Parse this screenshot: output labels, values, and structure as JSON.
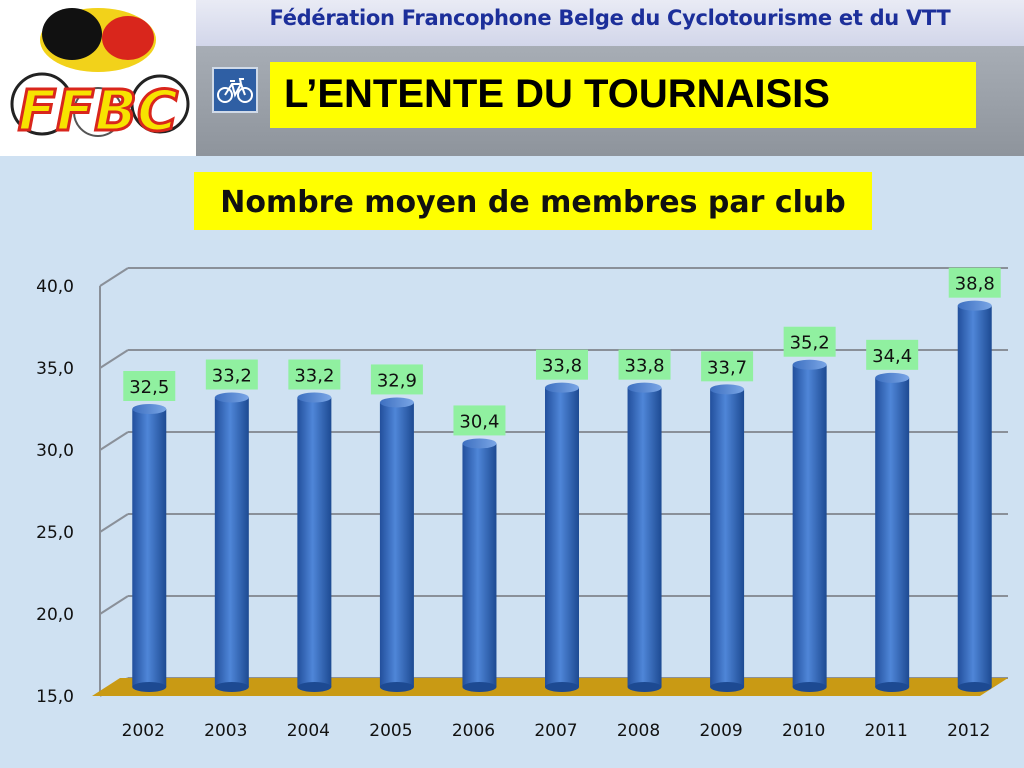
{
  "header": {
    "federation": "Fédération Francophone Belge du Cyclotourisme et du VTT",
    "logo_text": "FFBC",
    "title": "L’ENTENTE DU TOURNAISIS"
  },
  "icons": {
    "bike": "bicycle-icon"
  },
  "colors": {
    "bar": "#3a6fc2",
    "label_bg": "#90f0a0",
    "floor": "#c99a14",
    "title_bg": "#ffff00",
    "chart_bg": "#cfe1f2"
  },
  "chart_data": {
    "type": "bar",
    "title": "Nombre moyen de membres par club",
    "categories": [
      "2002",
      "2003",
      "2004",
      "2005",
      "2006",
      "2007",
      "2008",
      "2009",
      "2010",
      "2011",
      "2012"
    ],
    "values": [
      32.5,
      33.2,
      33.2,
      32.9,
      30.4,
      33.8,
      33.8,
      33.7,
      35.2,
      34.4,
      38.8
    ],
    "value_labels": [
      "32,5",
      "33,2",
      "33,2",
      "32,9",
      "30,4",
      "33,8",
      "33,8",
      "33,7",
      "35,2",
      "34,4",
      "38,8"
    ],
    "y_ticks": [
      "15,0",
      "20,0",
      "25,0",
      "30,0",
      "35,0",
      "40,0"
    ],
    "y_tick_values": [
      15,
      20,
      25,
      30,
      35,
      40
    ],
    "ylim": [
      15,
      40
    ],
    "xlabel": "",
    "ylabel": "",
    "grid": true,
    "legend": "none"
  }
}
